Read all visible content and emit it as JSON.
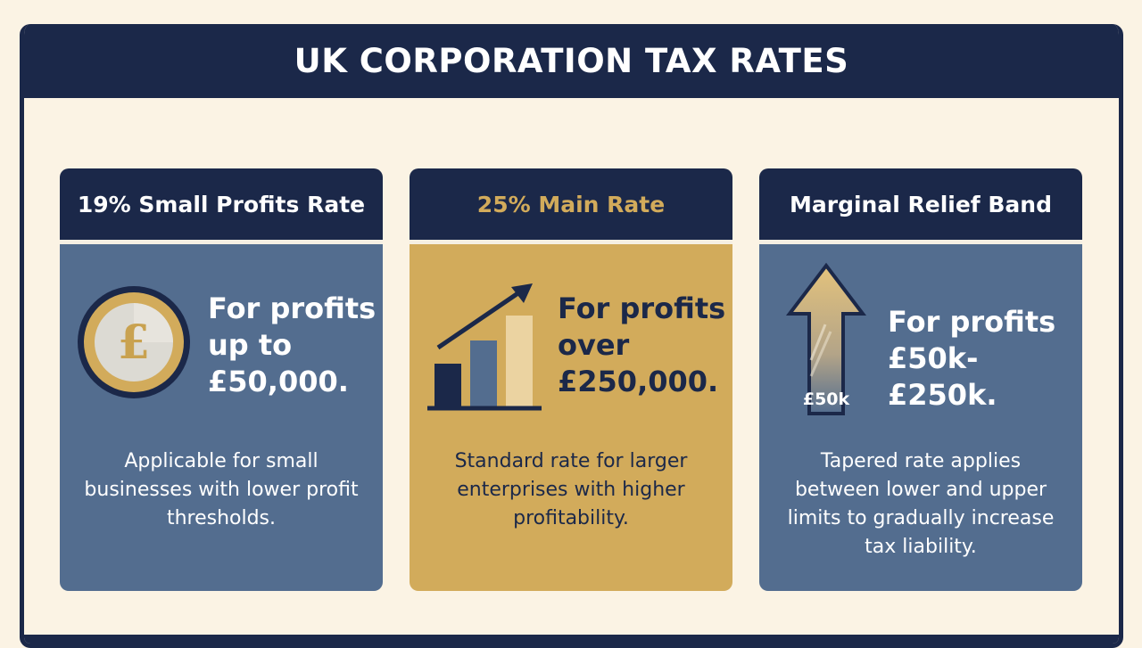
{
  "title": "UK CORPORATION TAX RATES",
  "cards": [
    {
      "heading": "19% Small Profits Rate",
      "headline_lines": [
        "For profits",
        "up to",
        "£50,000."
      ],
      "description": "Applicable for small businesses with lower profit thresholds.",
      "icon": "pound-coin-icon",
      "icon_glyph": "£"
    },
    {
      "heading": "25% Main Rate",
      "headline_lines": [
        "For profits",
        "over",
        "£250,000."
      ],
      "description": "Standard rate for larger enterprises with higher profitability.",
      "icon": "bar-chart-growth-icon"
    },
    {
      "heading": "Marginal Relief Band",
      "headline_lines": [
        "For profits",
        "£50k-£250k."
      ],
      "description": "Tapered rate applies between lower and upper limits to gradually increase tax liability.",
      "icon": "up-arrow-icon",
      "icon_label": "£50k"
    }
  ],
  "colors": {
    "navy": "#1b2849",
    "slate_blue": "#536d8f",
    "gold": "#d2ab5b",
    "cream": "#fbf3e4"
  }
}
